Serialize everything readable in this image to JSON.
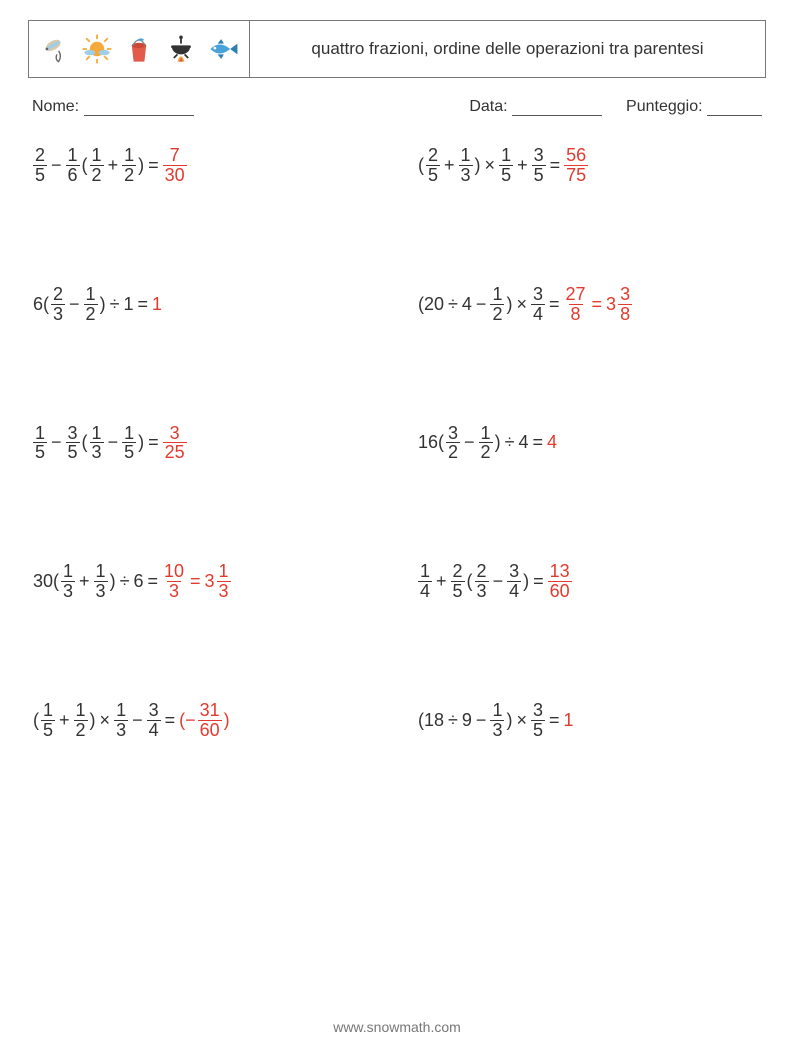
{
  "header": {
    "title": "quattro frazioni, ordine delle operazioni tra parentesi",
    "icons": [
      "lure-icon",
      "sun-icon",
      "bucket-icon",
      "pot-icon",
      "fish-icon"
    ],
    "icon_colors": {
      "lure": {
        "body": "#d7c9a8",
        "accent": "#9fcfe8",
        "hook": "#666"
      },
      "sun": {
        "body": "#f4a93c",
        "ray": "#f4a93c",
        "cloud": "#9fcfe8"
      },
      "bucket": {
        "body": "#e25a4a",
        "fish": "#4aa3d8"
      },
      "pot": {
        "body": "#333",
        "flame": "#f4a93c",
        "flame2": "#e25a4a"
      },
      "fish": {
        "body": "#4aa3d8",
        "fin": "#2e7fb3"
      }
    }
  },
  "meta": {
    "name_label": "Nome:",
    "date_label": "Data:",
    "score_label": "Punteggio:"
  },
  "answer_color": "#e23a2e",
  "text_color": "#333333",
  "font_size_pt": 14,
  "problems": [
    [
      {
        "t": "frac",
        "n": "2",
        "d": "5"
      },
      {
        "t": "op",
        "v": "−"
      },
      {
        "t": "frac",
        "n": "1",
        "d": "6"
      },
      {
        "t": "txt",
        "v": "("
      },
      {
        "t": "frac",
        "n": "1",
        "d": "2"
      },
      {
        "t": "op",
        "v": "+"
      },
      {
        "t": "frac",
        "n": "1",
        "d": "2"
      },
      {
        "t": "txt",
        "v": ")"
      },
      {
        "t": "op",
        "v": "="
      },
      {
        "t": "frac",
        "n": "7",
        "d": "30",
        "ans": true
      }
    ],
    [
      {
        "t": "txt",
        "v": "("
      },
      {
        "t": "frac",
        "n": "2",
        "d": "5"
      },
      {
        "t": "op",
        "v": "+"
      },
      {
        "t": "frac",
        "n": "1",
        "d": "3"
      },
      {
        "t": "txt",
        "v": ")"
      },
      {
        "t": "op",
        "v": "×"
      },
      {
        "t": "frac",
        "n": "1",
        "d": "5"
      },
      {
        "t": "op",
        "v": "+"
      },
      {
        "t": "frac",
        "n": "3",
        "d": "5"
      },
      {
        "t": "op",
        "v": "="
      },
      {
        "t": "frac",
        "n": "56",
        "d": "75",
        "ans": true
      }
    ],
    [
      {
        "t": "txt",
        "v": "6("
      },
      {
        "t": "frac",
        "n": "2",
        "d": "3"
      },
      {
        "t": "op",
        "v": "−"
      },
      {
        "t": "frac",
        "n": "1",
        "d": "2"
      },
      {
        "t": "txt",
        "v": ")"
      },
      {
        "t": "op",
        "v": "÷"
      },
      {
        "t": "txt",
        "v": "1"
      },
      {
        "t": "op",
        "v": "="
      },
      {
        "t": "txt",
        "v": "1",
        "ans": true
      }
    ],
    [
      {
        "t": "txt",
        "v": "(20"
      },
      {
        "t": "op",
        "v": "÷"
      },
      {
        "t": "txt",
        "v": "4"
      },
      {
        "t": "op",
        "v": "−"
      },
      {
        "t": "frac",
        "n": "1",
        "d": "2"
      },
      {
        "t": "txt",
        "v": ")"
      },
      {
        "t": "op",
        "v": "×"
      },
      {
        "t": "frac",
        "n": "3",
        "d": "4"
      },
      {
        "t": "op",
        "v": "="
      },
      {
        "t": "frac",
        "n": "27",
        "d": "8",
        "ans": true
      },
      {
        "t": "op",
        "v": "=",
        "ans": true
      },
      {
        "t": "txt",
        "v": "3",
        "ans": true
      },
      {
        "t": "frac",
        "n": "3",
        "d": "8",
        "ans": true
      }
    ],
    [
      {
        "t": "frac",
        "n": "1",
        "d": "5"
      },
      {
        "t": "op",
        "v": "−"
      },
      {
        "t": "frac",
        "n": "3",
        "d": "5"
      },
      {
        "t": "txt",
        "v": "("
      },
      {
        "t": "frac",
        "n": "1",
        "d": "3"
      },
      {
        "t": "op",
        "v": "−"
      },
      {
        "t": "frac",
        "n": "1",
        "d": "5"
      },
      {
        "t": "txt",
        "v": ")"
      },
      {
        "t": "op",
        "v": "="
      },
      {
        "t": "frac",
        "n": "3",
        "d": "25",
        "ans": true
      }
    ],
    [
      {
        "t": "txt",
        "v": "16("
      },
      {
        "t": "frac",
        "n": "3",
        "d": "2"
      },
      {
        "t": "op",
        "v": "−"
      },
      {
        "t": "frac",
        "n": "1",
        "d": "2"
      },
      {
        "t": "txt",
        "v": ")"
      },
      {
        "t": "op",
        "v": "÷"
      },
      {
        "t": "txt",
        "v": "4"
      },
      {
        "t": "op",
        "v": "="
      },
      {
        "t": "txt",
        "v": "4",
        "ans": true
      }
    ],
    [
      {
        "t": "txt",
        "v": "30("
      },
      {
        "t": "frac",
        "n": "1",
        "d": "3"
      },
      {
        "t": "op",
        "v": "+"
      },
      {
        "t": "frac",
        "n": "1",
        "d": "3"
      },
      {
        "t": "txt",
        "v": ")"
      },
      {
        "t": "op",
        "v": "÷"
      },
      {
        "t": "txt",
        "v": "6"
      },
      {
        "t": "op",
        "v": "="
      },
      {
        "t": "frac",
        "n": "10",
        "d": "3",
        "ans": true
      },
      {
        "t": "op",
        "v": "=",
        "ans": true
      },
      {
        "t": "txt",
        "v": "3",
        "ans": true
      },
      {
        "t": "frac",
        "n": "1",
        "d": "3",
        "ans": true
      }
    ],
    [
      {
        "t": "frac",
        "n": "1",
        "d": "4"
      },
      {
        "t": "op",
        "v": "+"
      },
      {
        "t": "frac",
        "n": "2",
        "d": "5"
      },
      {
        "t": "txt",
        "v": "("
      },
      {
        "t": "frac",
        "n": "2",
        "d": "3"
      },
      {
        "t": "op",
        "v": "−"
      },
      {
        "t": "frac",
        "n": "3",
        "d": "4"
      },
      {
        "t": "txt",
        "v": ")"
      },
      {
        "t": "op",
        "v": "="
      },
      {
        "t": "frac",
        "n": "13",
        "d": "60",
        "ans": true
      }
    ],
    [
      {
        "t": "txt",
        "v": "("
      },
      {
        "t": "frac",
        "n": "1",
        "d": "5"
      },
      {
        "t": "op",
        "v": "+"
      },
      {
        "t": "frac",
        "n": "1",
        "d": "2"
      },
      {
        "t": "txt",
        "v": ")"
      },
      {
        "t": "op",
        "v": "×"
      },
      {
        "t": "frac",
        "n": "1",
        "d": "3"
      },
      {
        "t": "op",
        "v": "−"
      },
      {
        "t": "frac",
        "n": "3",
        "d": "4"
      },
      {
        "t": "op",
        "v": "="
      },
      {
        "t": "txt",
        "v": "(−",
        "ans": true
      },
      {
        "t": "frac",
        "n": "31",
        "d": "60",
        "ans": true
      },
      {
        "t": "txt",
        "v": ")",
        "ans": true
      }
    ],
    [
      {
        "t": "txt",
        "v": "(18"
      },
      {
        "t": "op",
        "v": "÷"
      },
      {
        "t": "txt",
        "v": "9"
      },
      {
        "t": "op",
        "v": "−"
      },
      {
        "t": "frac",
        "n": "1",
        "d": "3"
      },
      {
        "t": "txt",
        "v": ")"
      },
      {
        "t": "op",
        "v": "×"
      },
      {
        "t": "frac",
        "n": "3",
        "d": "5"
      },
      {
        "t": "op",
        "v": "="
      },
      {
        "t": "txt",
        "v": "1",
        "ans": true
      }
    ]
  ],
  "footer": "www.snowmath.com"
}
